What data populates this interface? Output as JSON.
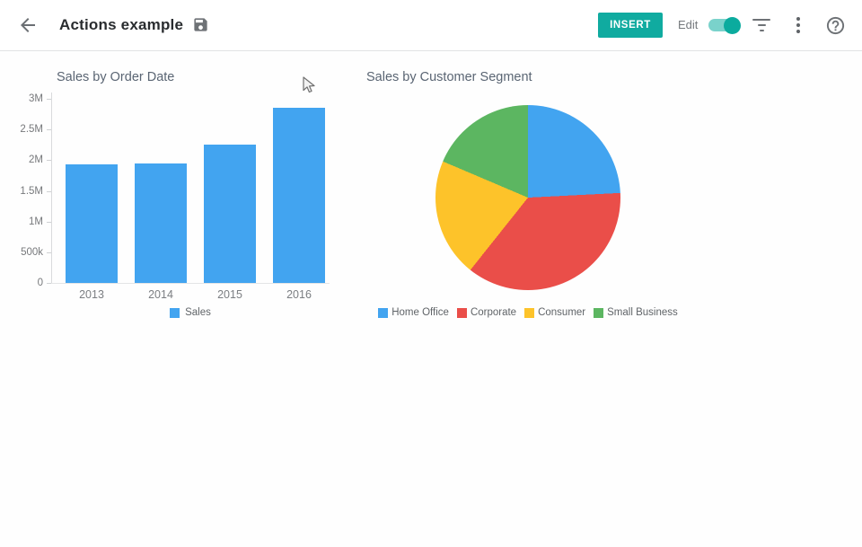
{
  "header": {
    "title": "Actions example",
    "insert_button_label": "INSERT",
    "edit_label": "Edit",
    "edit_toggle_state": "on",
    "accent_color": "#10aba0",
    "icons": {
      "back": "back-arrow-icon",
      "save": "save-icon",
      "filter": "filter-list-icon",
      "more": "kebab-menu-icon",
      "help": "help-icon"
    }
  },
  "chart_data": [
    {
      "type": "bar",
      "title": "Sales by Order Date",
      "categories": [
        "2013",
        "2014",
        "2015",
        "2016"
      ],
      "series": [
        {
          "name": "Sales",
          "values": [
            1930000,
            1950000,
            2250000,
            2860000
          ]
        }
      ],
      "xlabel": "",
      "ylabel": "",
      "ylim": [
        0,
        3000000
      ],
      "ytick_labels": [
        "0",
        "500k",
        "1M",
        "1.5M",
        "2M",
        "2.5M",
        "3M"
      ],
      "grid": false,
      "legend_position": "bottom",
      "bar_color": "#42a4f0"
    },
    {
      "type": "pie",
      "title": "Sales by Customer Segment",
      "labels": [
        "Home Office",
        "Corporate",
        "Consumer",
        "Small Business"
      ],
      "values_pct": [
        24.2,
        36.5,
        20.7,
        18.6
      ],
      "colors": [
        "#42a4f0",
        "#ea4e49",
        "#fdc32a",
        "#5cb661"
      ],
      "legend_position": "bottom"
    }
  ]
}
